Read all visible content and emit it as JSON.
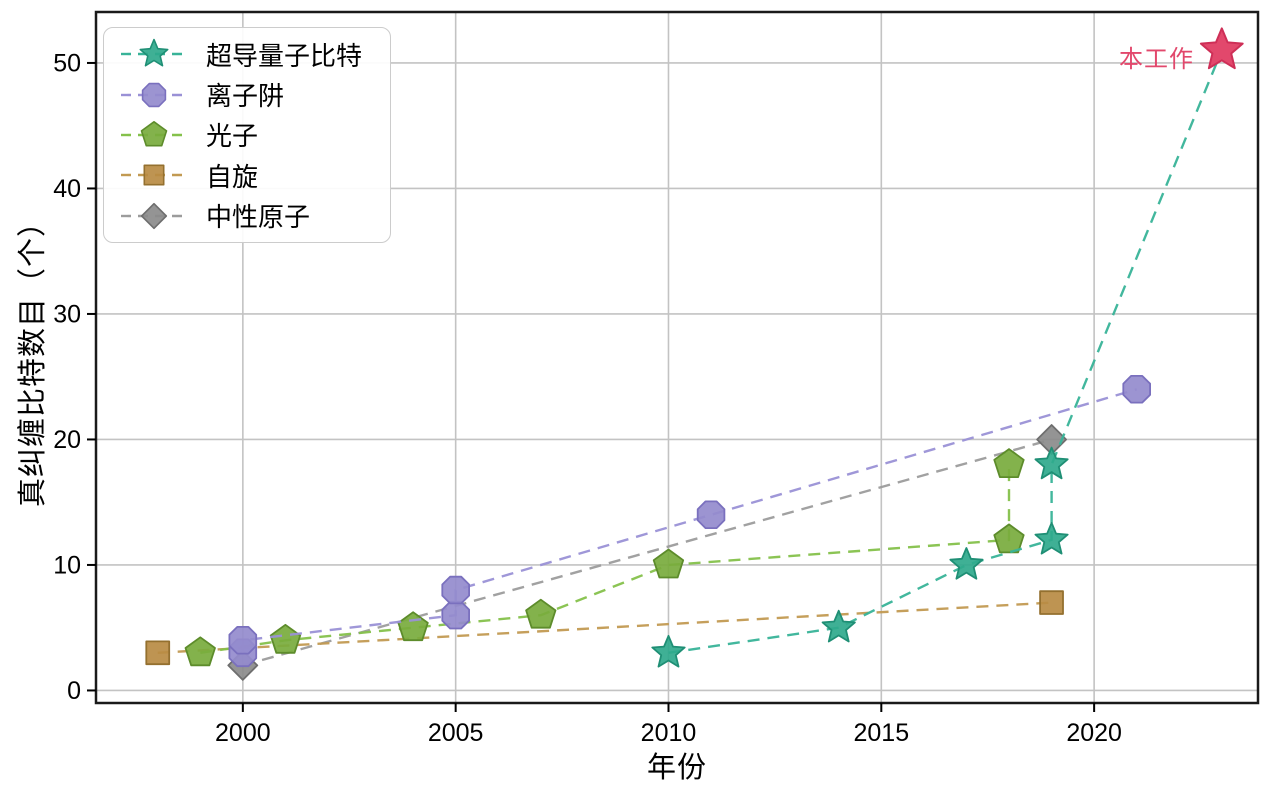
{
  "chart_data": {
    "type": "line",
    "title": "",
    "xlabel": "年份",
    "ylabel": "真纠缠比特数目（个）",
    "xlim": [
      1996.55,
      2023.85
    ],
    "ylim": [
      -1,
      54.06
    ],
    "xticks": [
      2000,
      2005,
      2010,
      2015,
      2020
    ],
    "yticks": [
      0,
      10,
      20,
      30,
      40,
      50
    ],
    "grid": true,
    "grid_color": "#c3c3c3",
    "spine_color": "#1a1a1a",
    "line_style": "dashed",
    "legend_position": "upper left",
    "series": [
      {
        "id": "superconducting-qubits",
        "name": "超导量子比特",
        "marker": "star",
        "color": "#2fa98c",
        "edge": "#1f8f75",
        "line_color": "#38b398",
        "points": [
          [
            2010,
            3
          ],
          [
            2014,
            5
          ],
          [
            2017,
            10
          ],
          [
            2019,
            12
          ],
          [
            2019,
            18
          ]
        ],
        "line_extends_to_highlight": true
      },
      {
        "id": "ion-trap",
        "name": "离子阱",
        "marker": "octagon",
        "color": "#948bcd",
        "edge": "#7a70be",
        "line_color": "#9a91d6",
        "points": [
          [
            2000,
            3
          ],
          [
            2000,
            4
          ],
          [
            2005,
            6
          ],
          [
            2005,
            8
          ],
          [
            2011,
            14
          ],
          [
            2021,
            24
          ]
        ]
      },
      {
        "id": "photons",
        "name": "光子",
        "marker": "pentagon",
        "color": "#78ab3d",
        "edge": "#5d8c2b",
        "line_color": "#85c14b",
        "points": [
          [
            1999,
            3
          ],
          [
            2001,
            4
          ],
          [
            2004,
            5
          ],
          [
            2007,
            6
          ],
          [
            2010,
            10
          ],
          [
            2018,
            12
          ],
          [
            2018,
            18
          ]
        ]
      },
      {
        "id": "spin",
        "name": "自旋",
        "marker": "square",
        "color": "#b98b43",
        "edge": "#94702f",
        "line_color": "#c29a52",
        "points": [
          [
            1998,
            3
          ],
          [
            2019,
            7
          ]
        ]
      },
      {
        "id": "neutral-atoms",
        "name": "中性原子",
        "marker": "diamond",
        "color": "#8b8b8b",
        "edge": "#6e6e6e",
        "line_color": "#9c9c9c",
        "points": [
          [
            2000,
            2
          ],
          [
            2019,
            20
          ]
        ]
      }
    ],
    "highlight": {
      "label": "本工作",
      "x": 2023,
      "y": 51,
      "marker": "star",
      "color": "#e2486c",
      "edge": "#ce2f57",
      "belongs_to_series": "超导量子比特"
    }
  }
}
